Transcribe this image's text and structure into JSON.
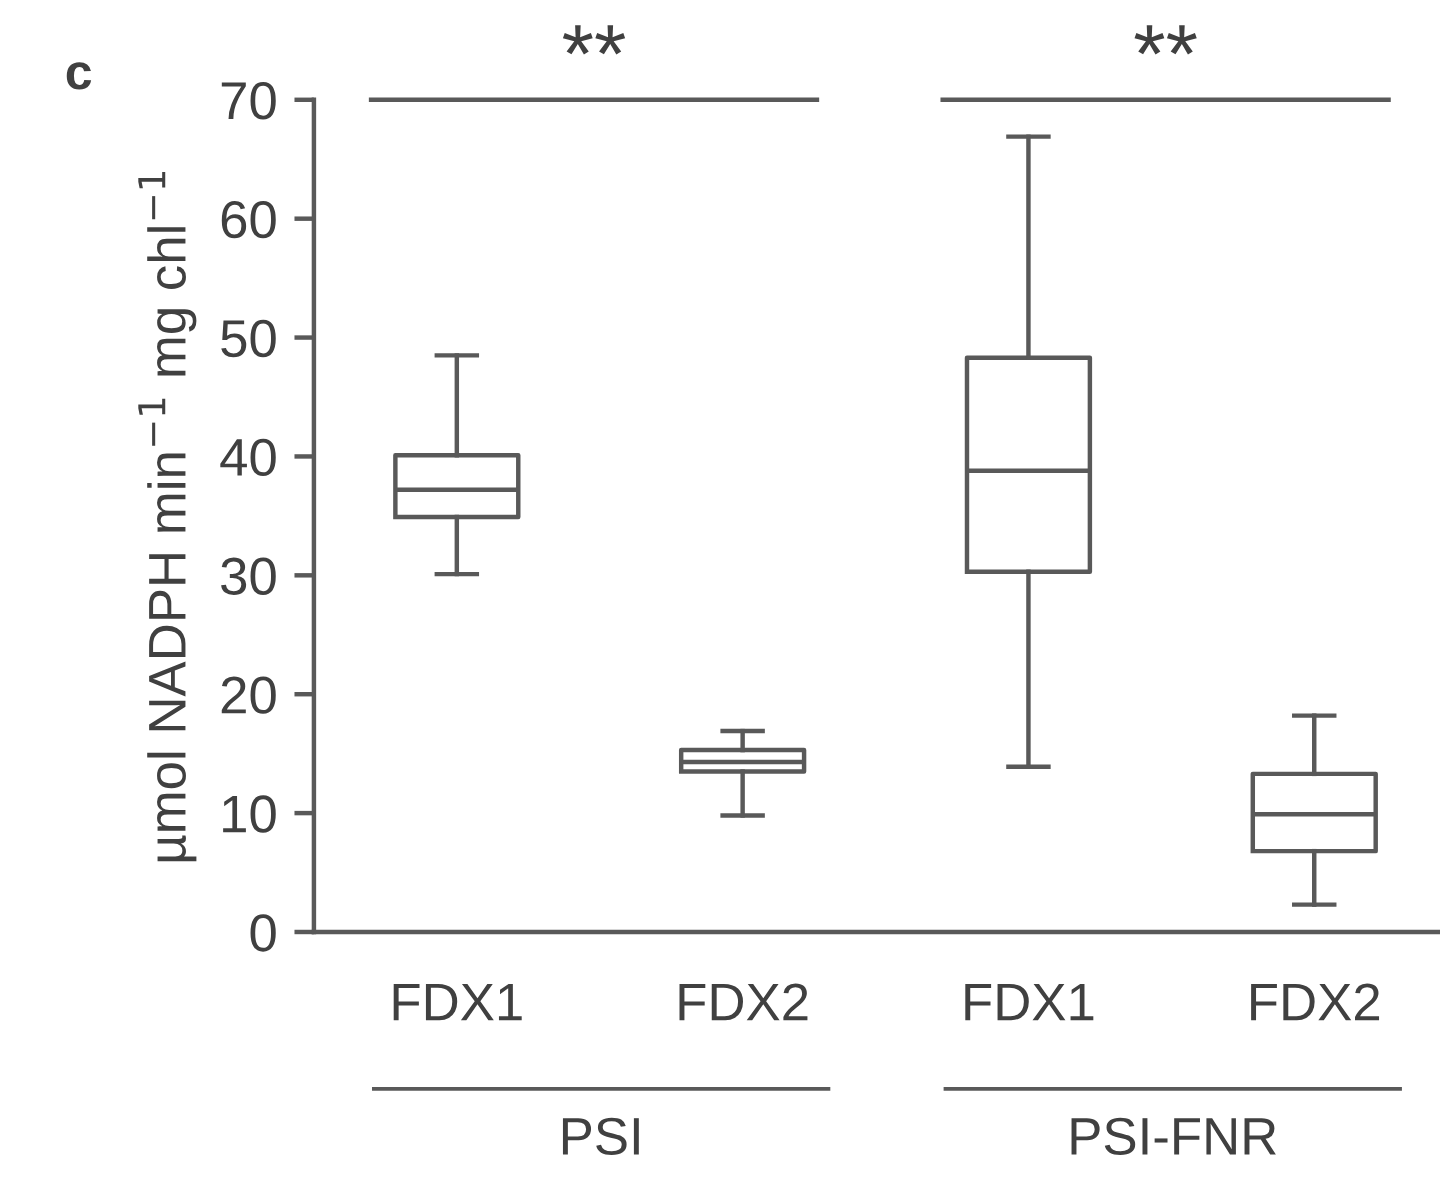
{
  "chart_data": {
    "type": "box",
    "title": "c",
    "ylabel": "µmol NADPH min$^{−1}$ mg chl$^{−1}$",
    "categories": [
      "FDX1",
      "FDX2",
      "FDX1",
      "FDX2"
    ],
    "boxes": [
      {
        "low": 30.1,
        "q1": 34.9,
        "median": 37.2,
        "q3": 40.1,
        "high": 48.5
      },
      {
        "low": 9.8,
        "q1": 13.5,
        "median": 14.3,
        "q3": 15.3,
        "high": 16.9
      },
      {
        "low": 13.9,
        "q1": 30.3,
        "median": 38.8,
        "q3": 48.3,
        "high": 66.9
      },
      {
        "low": 2.3,
        "q1": 6.8,
        "median": 9.9,
        "q3": 13.3,
        "high": 18.2
      }
    ],
    "color": "#595959",
    "ylim": [
      0,
      70
    ],
    "yticks": [
      0,
      10,
      20,
      30,
      40,
      50,
      60,
      70
    ],
    "annotations": [
      "**",
      "**",
      "PSI",
      "PSI-FNR"
    ]
  }
}
